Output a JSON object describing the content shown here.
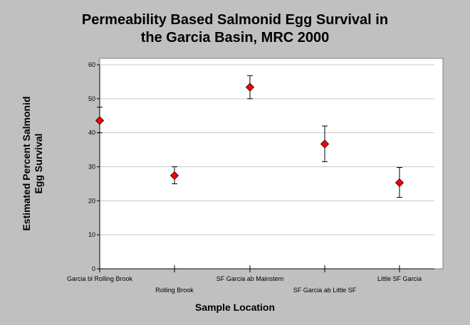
{
  "chart_data": {
    "type": "scatter",
    "title": [
      "Permeability Based Salmonid Egg Survival in",
      "the Garcia Basin, MRC 2000"
    ],
    "xlabel": "Sample Location",
    "ylabel": [
      "Estimated Percent Salmonid",
      "Egg Survival"
    ],
    "ylim": [
      0,
      60
    ],
    "yticks": [
      0,
      10,
      20,
      30,
      40,
      50,
      60
    ],
    "grid": true,
    "categories": [
      "Garcia bl Rolling Brook",
      "Rolling Brook",
      "SF Garcia ab Mainstem",
      "SF Garcia ab Little SF",
      "Little SF Garcia"
    ],
    "series": [
      {
        "values": [
          43.6,
          27.4,
          53.4,
          36.7,
          25.3
        ],
        "error_low": [
          40.0,
          25.0,
          50.0,
          31.5,
          21.0
        ],
        "error_high": [
          47.5,
          30.0,
          56.8,
          42.0,
          29.8
        ],
        "color": "#ff0000"
      }
    ]
  }
}
